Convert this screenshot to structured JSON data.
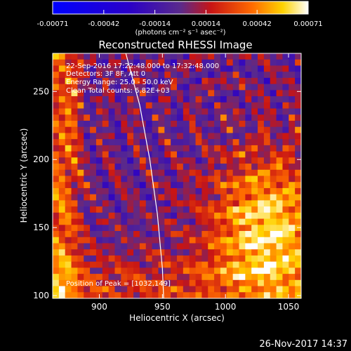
{
  "colorbar": {
    "ticks": [
      "-0.00071",
      "-0.00042",
      "-0.00014",
      "0.00014",
      "0.00042",
      "0.00071"
    ],
    "unit_label": "(photons cm⁻² s⁻¹ asec⁻²)",
    "min": -0.00071,
    "max": 0.00071
  },
  "chart_data": {
    "type": "heatmap",
    "title": "Reconstructed RHESSI Image",
    "xlabel": "Heliocentric X (arcsec)",
    "ylabel": "Heliocentric Y (arcsec)",
    "xlim": [
      863,
      1060
    ],
    "ylim": [
      98,
      278
    ],
    "xticks": [
      900,
      950,
      1000,
      1050
    ],
    "yticks": [
      100,
      150,
      200,
      250
    ],
    "annotations": [
      "22-Sep-2016 17:22:48.000 to 17:32:48.000",
      "Detectors: 3F 8F, Att 0",
      "Energy Range: 25.0 - 50.0 keV",
      "Clean     Total counts: 6.82E+03"
    ],
    "peak_label": "Position of Peak = [1032,149]",
    "peak": [
      1032,
      149
    ],
    "limb_curve": [
      [
        921,
        278
      ],
      [
        932,
        240
      ],
      [
        940,
        200
      ],
      [
        946,
        160
      ],
      [
        950,
        120
      ],
      [
        951,
        98
      ]
    ],
    "colormap": "blue-purple-red-yellow-white"
  },
  "footer": {
    "timestamp": "26-Nov-2017 14:37"
  }
}
